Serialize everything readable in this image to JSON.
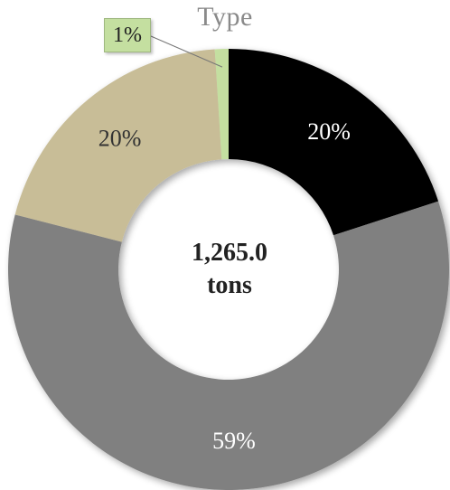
{
  "chart_data": {
    "type": "pie",
    "title": "Type",
    "center_label": [
      "1,265.0",
      "tons"
    ],
    "donut": true,
    "slices": [
      {
        "label": "20%",
        "value": 20,
        "color": "#000000",
        "text_color": "#ffffff"
      },
      {
        "label": "59%",
        "value": 59,
        "color": "#808080",
        "text_color": "#ffffff"
      },
      {
        "label": "20%",
        "value": 20,
        "color": "#c8bd97",
        "text_color": "#333333"
      },
      {
        "label": "1%",
        "value": 1,
        "color": "#c4dfa0",
        "text_color": "#222222",
        "callout": true
      }
    ]
  }
}
